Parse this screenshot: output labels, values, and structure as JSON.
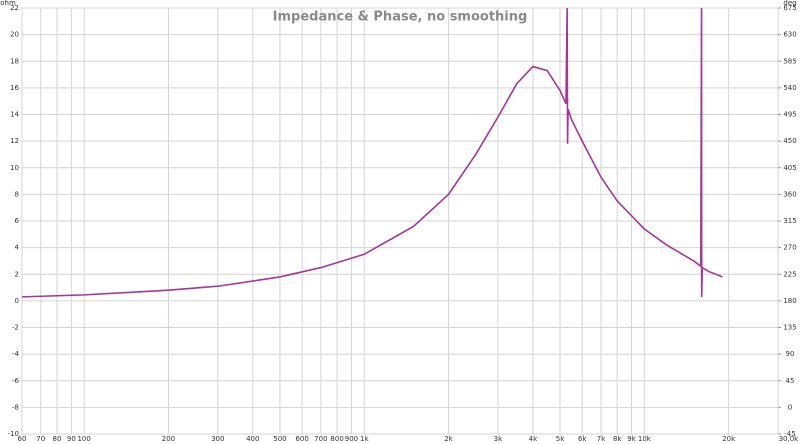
{
  "chart_data": {
    "type": "line",
    "title": "Impedance & Phase, no smoothing",
    "y_label": "ohm",
    "y2_label": "deg",
    "log_x": true,
    "grid": true,
    "color": "#a3369b",
    "x": [
      60,
      100,
      200,
      300,
      500,
      700,
      1000,
      1500,
      2000,
      2500,
      3000,
      3500,
      4000,
      4500,
      5000,
      5250,
      5300,
      5320,
      5340,
      5500,
      6000,
      7000,
      8000,
      10000,
      12000,
      15000,
      15900,
      16000,
      16020,
      16100,
      17000,
      19000
    ],
    "values": [
      0.3,
      0.45,
      0.8,
      1.1,
      1.8,
      2.5,
      3.5,
      5.6,
      8.0,
      11.0,
      13.8,
      16.3,
      17.6,
      17.3,
      15.8,
      14.8,
      22,
      11.8,
      14.4,
      13.6,
      12.0,
      9.3,
      7.5,
      5.4,
      4.2,
      3.0,
      2.6,
      22,
      0.3,
      2.5,
      2.2,
      1.8
    ],
    "xlim": [
      60,
      30000
    ],
    "xticks": [
      60,
      70,
      80,
      90,
      100,
      200,
      300,
      400,
      500,
      600,
      700,
      800,
      900,
      {
        "value": 1000,
        "label": "1k"
      },
      {
        "value": 2000,
        "label": "2k"
      },
      {
        "value": 3000,
        "label": "3k"
      },
      {
        "value": 4000,
        "label": "4k"
      },
      {
        "value": 5000,
        "label": "5k"
      },
      {
        "value": 6000,
        "label": "6k"
      },
      {
        "value": 7000,
        "label": "7k"
      },
      {
        "value": 8000,
        "label": "8k"
      },
      {
        "value": 9000,
        "label": "9k"
      },
      {
        "value": 10000,
        "label": "10k"
      },
      {
        "value": 20000,
        "label": "20k"
      },
      {
        "value": 30000,
        "label": "30,0k Hz"
      }
    ],
    "ylim": [
      -10,
      22
    ],
    "yticks": [
      -10,
      -8,
      -6,
      -4,
      -2,
      0,
      2,
      4,
      6,
      8,
      10,
      12,
      14,
      16,
      18,
      20,
      22
    ],
    "y2lim": [
      -45,
      675
    ],
    "y2ticks": [
      -45,
      0,
      45,
      90,
      135,
      180,
      225,
      270,
      315,
      360,
      405,
      450,
      495,
      540,
      585,
      630,
      675
    ]
  }
}
